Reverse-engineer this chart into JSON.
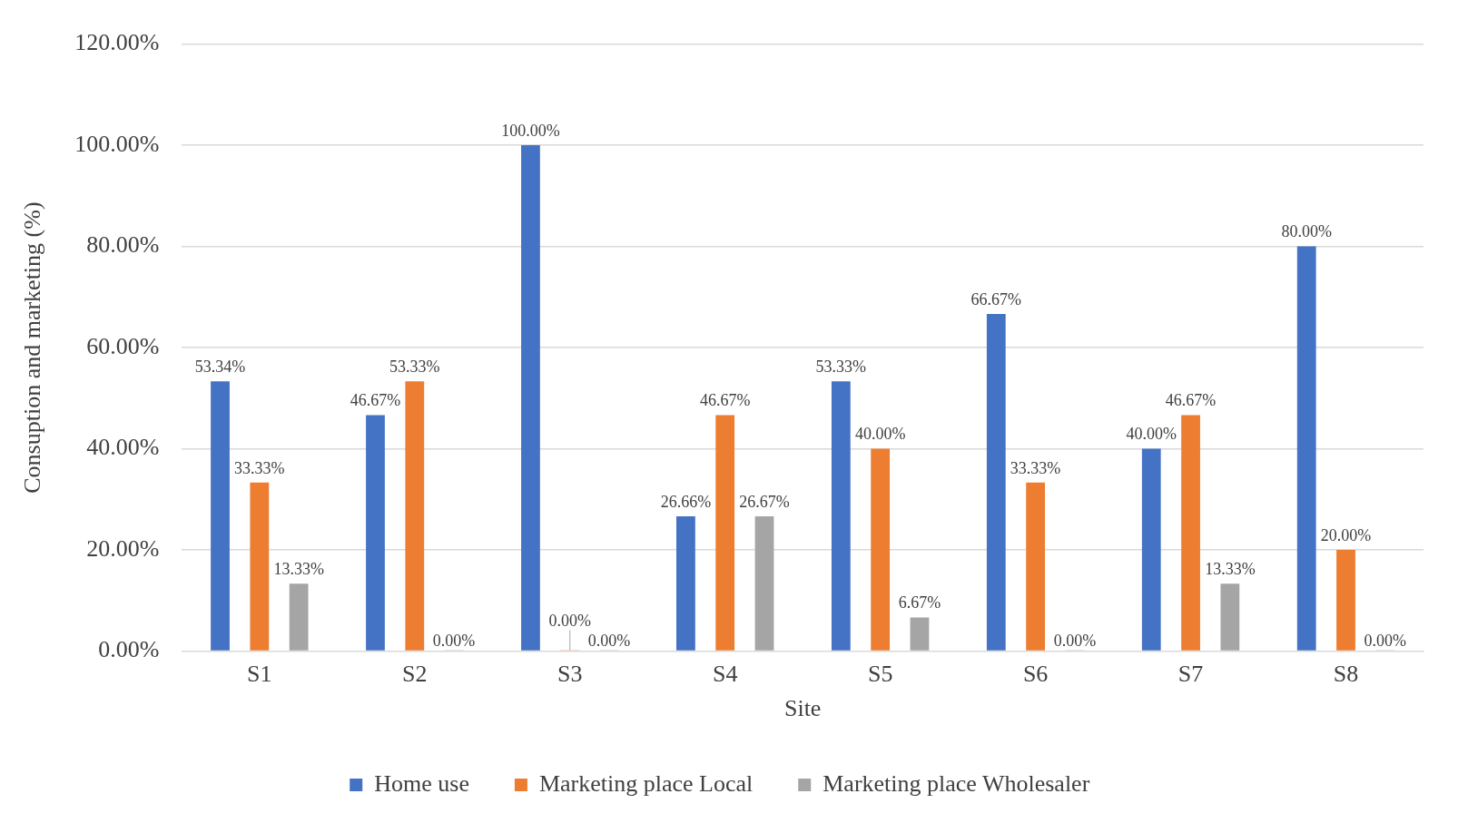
{
  "chart_data": {
    "type": "bar",
    "xlabel": "Site",
    "ylabel": "Consuption and marketing (%)",
    "categories": [
      "S1",
      "S2",
      "S3",
      "S4",
      "S5",
      "S6",
      "S7",
      "S8"
    ],
    "series": [
      {
        "name": "Home use",
        "color": "#4472c4",
        "values": [
          53.34,
          46.67,
          100,
          26.66,
          53.33,
          66.67,
          40,
          80
        ],
        "value_labels": [
          "53.34%",
          "46.67%",
          "100.00%",
          "26.66%",
          "53.33%",
          "66.67%",
          "40.00%",
          "80.00%"
        ]
      },
      {
        "name": "Marketing place Local",
        "color": "#ed7d31",
        "values": [
          33.33,
          53.33,
          0,
          46.67,
          40,
          33.33,
          46.67,
          20
        ],
        "value_labels": [
          "33.33%",
          "53.33%",
          "0.00%",
          "46.67%",
          "40.00%",
          "33.33%",
          "46.67%",
          "20.00%"
        ]
      },
      {
        "name": "Marketing place Wholesaler",
        "color": "#a5a5a5",
        "values": [
          13.33,
          0,
          0,
          26.67,
          6.67,
          0,
          13.33,
          0
        ],
        "value_labels": [
          "13.33%",
          "0.00%",
          "0.00%",
          "26.67%",
          "6.67%",
          "0.00%",
          "13.33%",
          "0.00%"
        ]
      }
    ],
    "ylim": [
      0,
      120
    ],
    "yticks": [
      {
        "value": 0,
        "label": "0.00%"
      },
      {
        "value": 20,
        "label": "20.00%"
      },
      {
        "value": 40,
        "label": "40.00%"
      },
      {
        "value": 60,
        "label": "60.00%"
      },
      {
        "value": 80,
        "label": "80.00%"
      },
      {
        "value": 100,
        "label": "100.00%"
      },
      {
        "value": 120,
        "label": "120.00%"
      }
    ],
    "grid": "y",
    "legend": "bottom"
  }
}
